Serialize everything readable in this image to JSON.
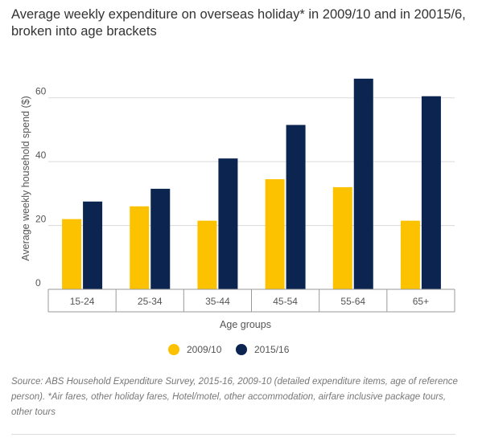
{
  "chart_data": {
    "type": "bar",
    "title": "Average weekly expenditure on overseas holiday* in 2009/10 and in 20015/6, broken into age brackets",
    "xlabel": "Age groups",
    "ylabel": "Average weekly household spend ($)",
    "categories": [
      "15-24",
      "25-34",
      "35-44",
      "45-54",
      "55-64",
      "65+"
    ],
    "ylim": [
      0,
      70
    ],
    "yticks": [
      0,
      20,
      40,
      60
    ],
    "grid": true,
    "legend_position": "bottom",
    "series": [
      {
        "name": "2009/10",
        "color": "#fcc200",
        "values": [
          22,
          26,
          21.5,
          34.5,
          32,
          21.5
        ]
      },
      {
        "name": "2015/16",
        "color": "#0b2550",
        "values": [
          27.5,
          31.5,
          41,
          51.5,
          66,
          60.5
        ]
      }
    ]
  },
  "source_note": "Source: ABS Household Expenditure Survey, 2015-16, 2009-10 (detailed expenditure items, age of reference person). *Air fares, other holiday fares, Hotel/motel, other accommodation, airfare inclusive package tours, other tours"
}
